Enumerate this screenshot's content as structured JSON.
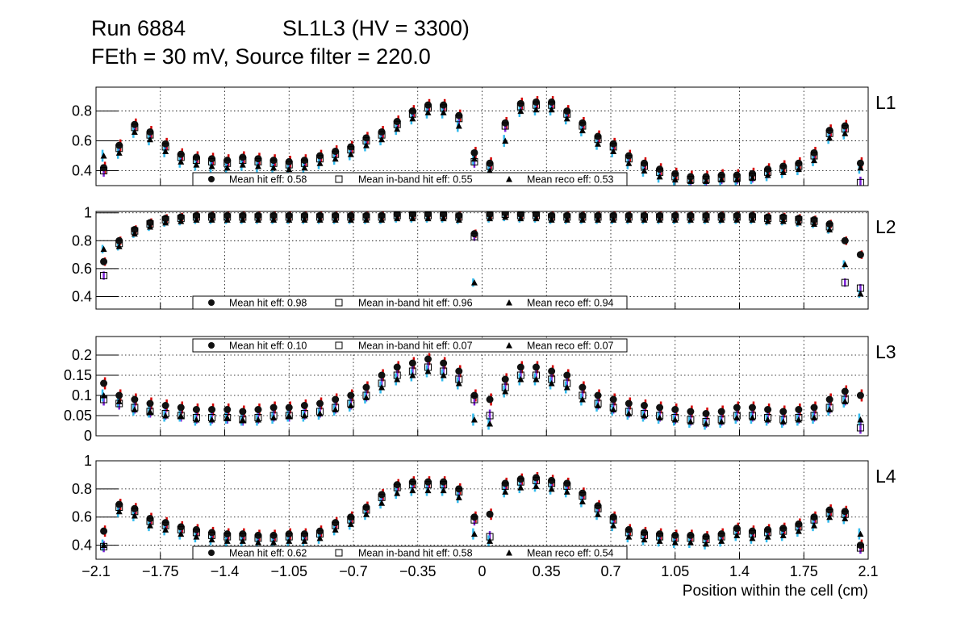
{
  "title_line1_left": "Run 6884",
  "title_line1_right": "SL1L3 (HV = 3300)",
  "title_line2": "FEth = 30 mV, Source filter = 220.0",
  "colors": {
    "hit_err": "#d40000",
    "inband_err": "#7a1fd6",
    "reco_err": "#33bbee",
    "grid": "#000000"
  },
  "chart_data": {
    "type": "scatter",
    "xlabel": "Position within the cell (cm)",
    "xlim": [
      -2.1,
      2.1
    ],
    "xticks": [
      "−2.1",
      "−1.75",
      "−1.4",
      "−1.05",
      "−0.7",
      "−0.35",
      "0",
      "0.35",
      "0.7",
      "1.05",
      "1.4",
      "1.75",
      "2.1"
    ],
    "xtick_values": [
      -2.1,
      -1.75,
      -1.4,
      -1.05,
      -0.7,
      -0.35,
      0,
      0.35,
      0.7,
      1.05,
      1.4,
      1.75,
      2.1
    ],
    "grid": true,
    "bin_start": -2.1,
    "bin_width": 0.084,
    "panels": [
      {
        "label": "L1",
        "ylim": [
          0.3,
          0.96
        ],
        "yticks": [
          0.4,
          0.6,
          0.8
        ],
        "ytick_labels": [
          "0.4",
          "0.6",
          "0.8"
        ],
        "legend_position": "bottom",
        "error_bar": 0.04,
        "legend": [
          "Mean hit  eff: 0.58",
          "Mean in-band hit eff: 0.55",
          "Mean reco eff: 0.53"
        ],
        "hit": [
          0.42,
          0.57,
          0.71,
          0.66,
          0.58,
          0.51,
          0.49,
          0.48,
          0.47,
          0.49,
          0.48,
          0.47,
          0.46,
          0.47,
          0.5,
          0.53,
          0.56,
          0.62,
          0.66,
          0.73,
          0.8,
          0.84,
          0.84,
          0.77,
          0.52,
          0.45,
          0.72,
          0.85,
          0.86,
          0.86,
          0.8,
          0.72,
          0.63,
          0.58,
          0.5,
          0.45,
          0.41,
          0.38,
          0.36,
          0.36,
          0.37,
          0.37,
          0.38,
          0.41,
          0.43,
          0.45,
          0.52,
          0.67,
          0.7,
          0.45
        ],
        "inband": [
          0.4,
          0.55,
          0.69,
          0.64,
          0.56,
          0.49,
          0.47,
          0.46,
          0.45,
          0.47,
          0.46,
          0.45,
          0.44,
          0.45,
          0.48,
          0.51,
          0.54,
          0.6,
          0.64,
          0.71,
          0.78,
          0.82,
          0.82,
          0.75,
          0.46,
          0.43,
          0.7,
          0.83,
          0.84,
          0.84,
          0.78,
          0.7,
          0.61,
          0.56,
          0.48,
          0.43,
          0.39,
          0.36,
          0.34,
          0.34,
          0.35,
          0.35,
          0.36,
          0.39,
          0.41,
          0.43,
          0.5,
          0.65,
          0.68,
          0.32
        ],
        "reco": [
          0.5,
          0.52,
          0.66,
          0.61,
          0.53,
          0.46,
          0.44,
          0.43,
          0.42,
          0.44,
          0.43,
          0.42,
          0.41,
          0.42,
          0.45,
          0.48,
          0.51,
          0.57,
          0.61,
          0.68,
          0.75,
          0.79,
          0.79,
          0.7,
          0.48,
          0.4,
          0.6,
          0.8,
          0.81,
          0.81,
          0.75,
          0.67,
          0.58,
          0.53,
          0.45,
          0.4,
          0.36,
          0.34,
          0.33,
          0.33,
          0.34,
          0.34,
          0.35,
          0.37,
          0.39,
          0.41,
          0.47,
          0.62,
          0.65,
          0.42
        ]
      },
      {
        "label": "L2",
        "ylim": [
          0.31,
          1.01
        ],
        "yticks": [
          0.4,
          0.6,
          0.8,
          1.0
        ],
        "ytick_labels": [
          "0.4",
          "0.6",
          "0.8",
          "1"
        ],
        "legend_position": "bottom",
        "error_bar": 0.03,
        "legend": [
          "Mean hit  eff: 0.98",
          "Mean in-band hit eff: 0.96",
          "Mean reco eff: 0.94"
        ],
        "hit": [
          0.65,
          0.8,
          0.88,
          0.93,
          0.96,
          0.97,
          0.98,
          0.98,
          0.98,
          0.98,
          0.98,
          0.98,
          0.98,
          0.98,
          0.98,
          0.98,
          0.98,
          0.98,
          0.98,
          0.99,
          0.99,
          0.99,
          0.99,
          0.98,
          0.85,
          0.99,
          1.0,
          0.99,
          0.99,
          0.98,
          0.98,
          0.98,
          0.98,
          0.98,
          0.98,
          0.98,
          0.98,
          0.98,
          0.98,
          0.98,
          0.98,
          0.98,
          0.98,
          0.97,
          0.97,
          0.96,
          0.95,
          0.92,
          0.8,
          0.7
        ],
        "inband": [
          0.55,
          0.78,
          0.87,
          0.92,
          0.95,
          0.96,
          0.97,
          0.97,
          0.97,
          0.97,
          0.97,
          0.97,
          0.97,
          0.97,
          0.97,
          0.97,
          0.97,
          0.97,
          0.97,
          0.98,
          0.98,
          0.98,
          0.98,
          0.97,
          0.83,
          0.98,
          0.99,
          0.98,
          0.98,
          0.97,
          0.97,
          0.97,
          0.97,
          0.97,
          0.97,
          0.97,
          0.97,
          0.97,
          0.97,
          0.97,
          0.97,
          0.97,
          0.97,
          0.96,
          0.96,
          0.95,
          0.94,
          0.9,
          0.5,
          0.46
        ],
        "reco": [
          0.74,
          0.76,
          0.85,
          0.9,
          0.93,
          0.94,
          0.95,
          0.95,
          0.95,
          0.95,
          0.95,
          0.95,
          0.95,
          0.95,
          0.95,
          0.95,
          0.95,
          0.95,
          0.95,
          0.96,
          0.96,
          0.96,
          0.96,
          0.95,
          0.5,
          0.96,
          0.97,
          0.96,
          0.96,
          0.95,
          0.95,
          0.95,
          0.95,
          0.95,
          0.95,
          0.95,
          0.95,
          0.95,
          0.95,
          0.95,
          0.95,
          0.95,
          0.95,
          0.94,
          0.94,
          0.93,
          0.92,
          0.88,
          0.63,
          0.42
        ]
      },
      {
        "label": "L3",
        "ylim": [
          0,
          0.246
        ],
        "yticks": [
          0,
          0.05,
          0.1,
          0.15,
          0.2
        ],
        "ytick_labels": [
          "0",
          "0.05",
          "0.1",
          "0.15",
          "0.2"
        ],
        "legend_position": "top",
        "error_bar": 0.015,
        "legend": [
          "Mean hit  eff: 0.10",
          "Mean in-band hit eff: 0.07",
          "Mean reco eff: 0.07"
        ],
        "hit": [
          0.13,
          0.1,
          0.09,
          0.08,
          0.075,
          0.07,
          0.065,
          0.065,
          0.065,
          0.06,
          0.065,
          0.07,
          0.07,
          0.075,
          0.08,
          0.09,
          0.1,
          0.12,
          0.15,
          0.17,
          0.18,
          0.19,
          0.18,
          0.16,
          0.1,
          0.09,
          0.14,
          0.17,
          0.17,
          0.16,
          0.15,
          0.12,
          0.1,
          0.09,
          0.08,
          0.075,
          0.07,
          0.065,
          0.06,
          0.055,
          0.06,
          0.07,
          0.07,
          0.065,
          0.06,
          0.065,
          0.07,
          0.09,
          0.11,
          0.1
        ],
        "inband": [
          0.09,
          0.08,
          0.07,
          0.06,
          0.055,
          0.05,
          0.045,
          0.045,
          0.045,
          0.04,
          0.045,
          0.05,
          0.05,
          0.055,
          0.06,
          0.07,
          0.08,
          0.1,
          0.13,
          0.15,
          0.16,
          0.17,
          0.16,
          0.14,
          0.09,
          0.05,
          0.12,
          0.15,
          0.15,
          0.14,
          0.13,
          0.1,
          0.08,
          0.07,
          0.06,
          0.055,
          0.05,
          0.045,
          0.04,
          0.035,
          0.04,
          0.05,
          0.05,
          0.045,
          0.04,
          0.045,
          0.05,
          0.07,
          0.09,
          0.02
        ],
        "reco": [
          0.1,
          0.085,
          0.065,
          0.06,
          0.05,
          0.05,
          0.04,
          0.04,
          0.045,
          0.04,
          0.04,
          0.045,
          0.05,
          0.05,
          0.055,
          0.065,
          0.075,
          0.095,
          0.12,
          0.14,
          0.15,
          0.16,
          0.15,
          0.13,
          0.04,
          0.03,
          0.11,
          0.14,
          0.14,
          0.13,
          0.12,
          0.09,
          0.075,
          0.065,
          0.055,
          0.05,
          0.045,
          0.04,
          0.035,
          0.03,
          0.035,
          0.045,
          0.045,
          0.04,
          0.035,
          0.04,
          0.045,
          0.065,
          0.085,
          0.04
        ]
      },
      {
        "label": "L4",
        "ylim": [
          0.3,
          1.0
        ],
        "yticks": [
          0.4,
          0.6,
          0.8,
          1.0
        ],
        "ytick_labels": [
          "0.4",
          "0.6",
          "0.8",
          "1"
        ],
        "legend_position": "bottom",
        "error_bar": 0.04,
        "legend": [
          "Mean hit  eff: 0.62",
          "Mean in-band hit eff: 0.58",
          "Mean reco eff: 0.54"
        ],
        "hit": [
          0.5,
          0.69,
          0.66,
          0.59,
          0.56,
          0.53,
          0.51,
          0.49,
          0.48,
          0.48,
          0.47,
          0.47,
          0.48,
          0.48,
          0.5,
          0.56,
          0.6,
          0.67,
          0.76,
          0.83,
          0.85,
          0.85,
          0.85,
          0.8,
          0.6,
          0.62,
          0.84,
          0.87,
          0.88,
          0.86,
          0.84,
          0.77,
          0.68,
          0.6,
          0.51,
          0.49,
          0.48,
          0.47,
          0.47,
          0.46,
          0.48,
          0.52,
          0.5,
          0.51,
          0.52,
          0.55,
          0.6,
          0.65,
          0.64,
          0.4
        ],
        "inband": [
          0.39,
          0.67,
          0.64,
          0.57,
          0.54,
          0.51,
          0.49,
          0.47,
          0.46,
          0.46,
          0.45,
          0.45,
          0.46,
          0.46,
          0.48,
          0.54,
          0.58,
          0.65,
          0.74,
          0.81,
          0.83,
          0.83,
          0.83,
          0.78,
          0.58,
          0.46,
          0.82,
          0.85,
          0.86,
          0.84,
          0.82,
          0.75,
          0.66,
          0.58,
          0.49,
          0.47,
          0.46,
          0.45,
          0.45,
          0.44,
          0.46,
          0.5,
          0.48,
          0.49,
          0.5,
          0.53,
          0.58,
          0.63,
          0.62,
          0.38
        ],
        "reco": [
          0.4,
          0.64,
          0.61,
          0.54,
          0.51,
          0.48,
          0.46,
          0.44,
          0.43,
          0.43,
          0.42,
          0.42,
          0.43,
          0.43,
          0.45,
          0.51,
          0.55,
          0.62,
          0.7,
          0.77,
          0.79,
          0.79,
          0.79,
          0.74,
          0.48,
          0.43,
          0.78,
          0.81,
          0.82,
          0.8,
          0.78,
          0.71,
          0.62,
          0.54,
          0.46,
          0.44,
          0.43,
          0.42,
          0.42,
          0.41,
          0.43,
          0.47,
          0.45,
          0.46,
          0.47,
          0.5,
          0.54,
          0.6,
          0.59,
          0.48
        ]
      }
    ]
  }
}
